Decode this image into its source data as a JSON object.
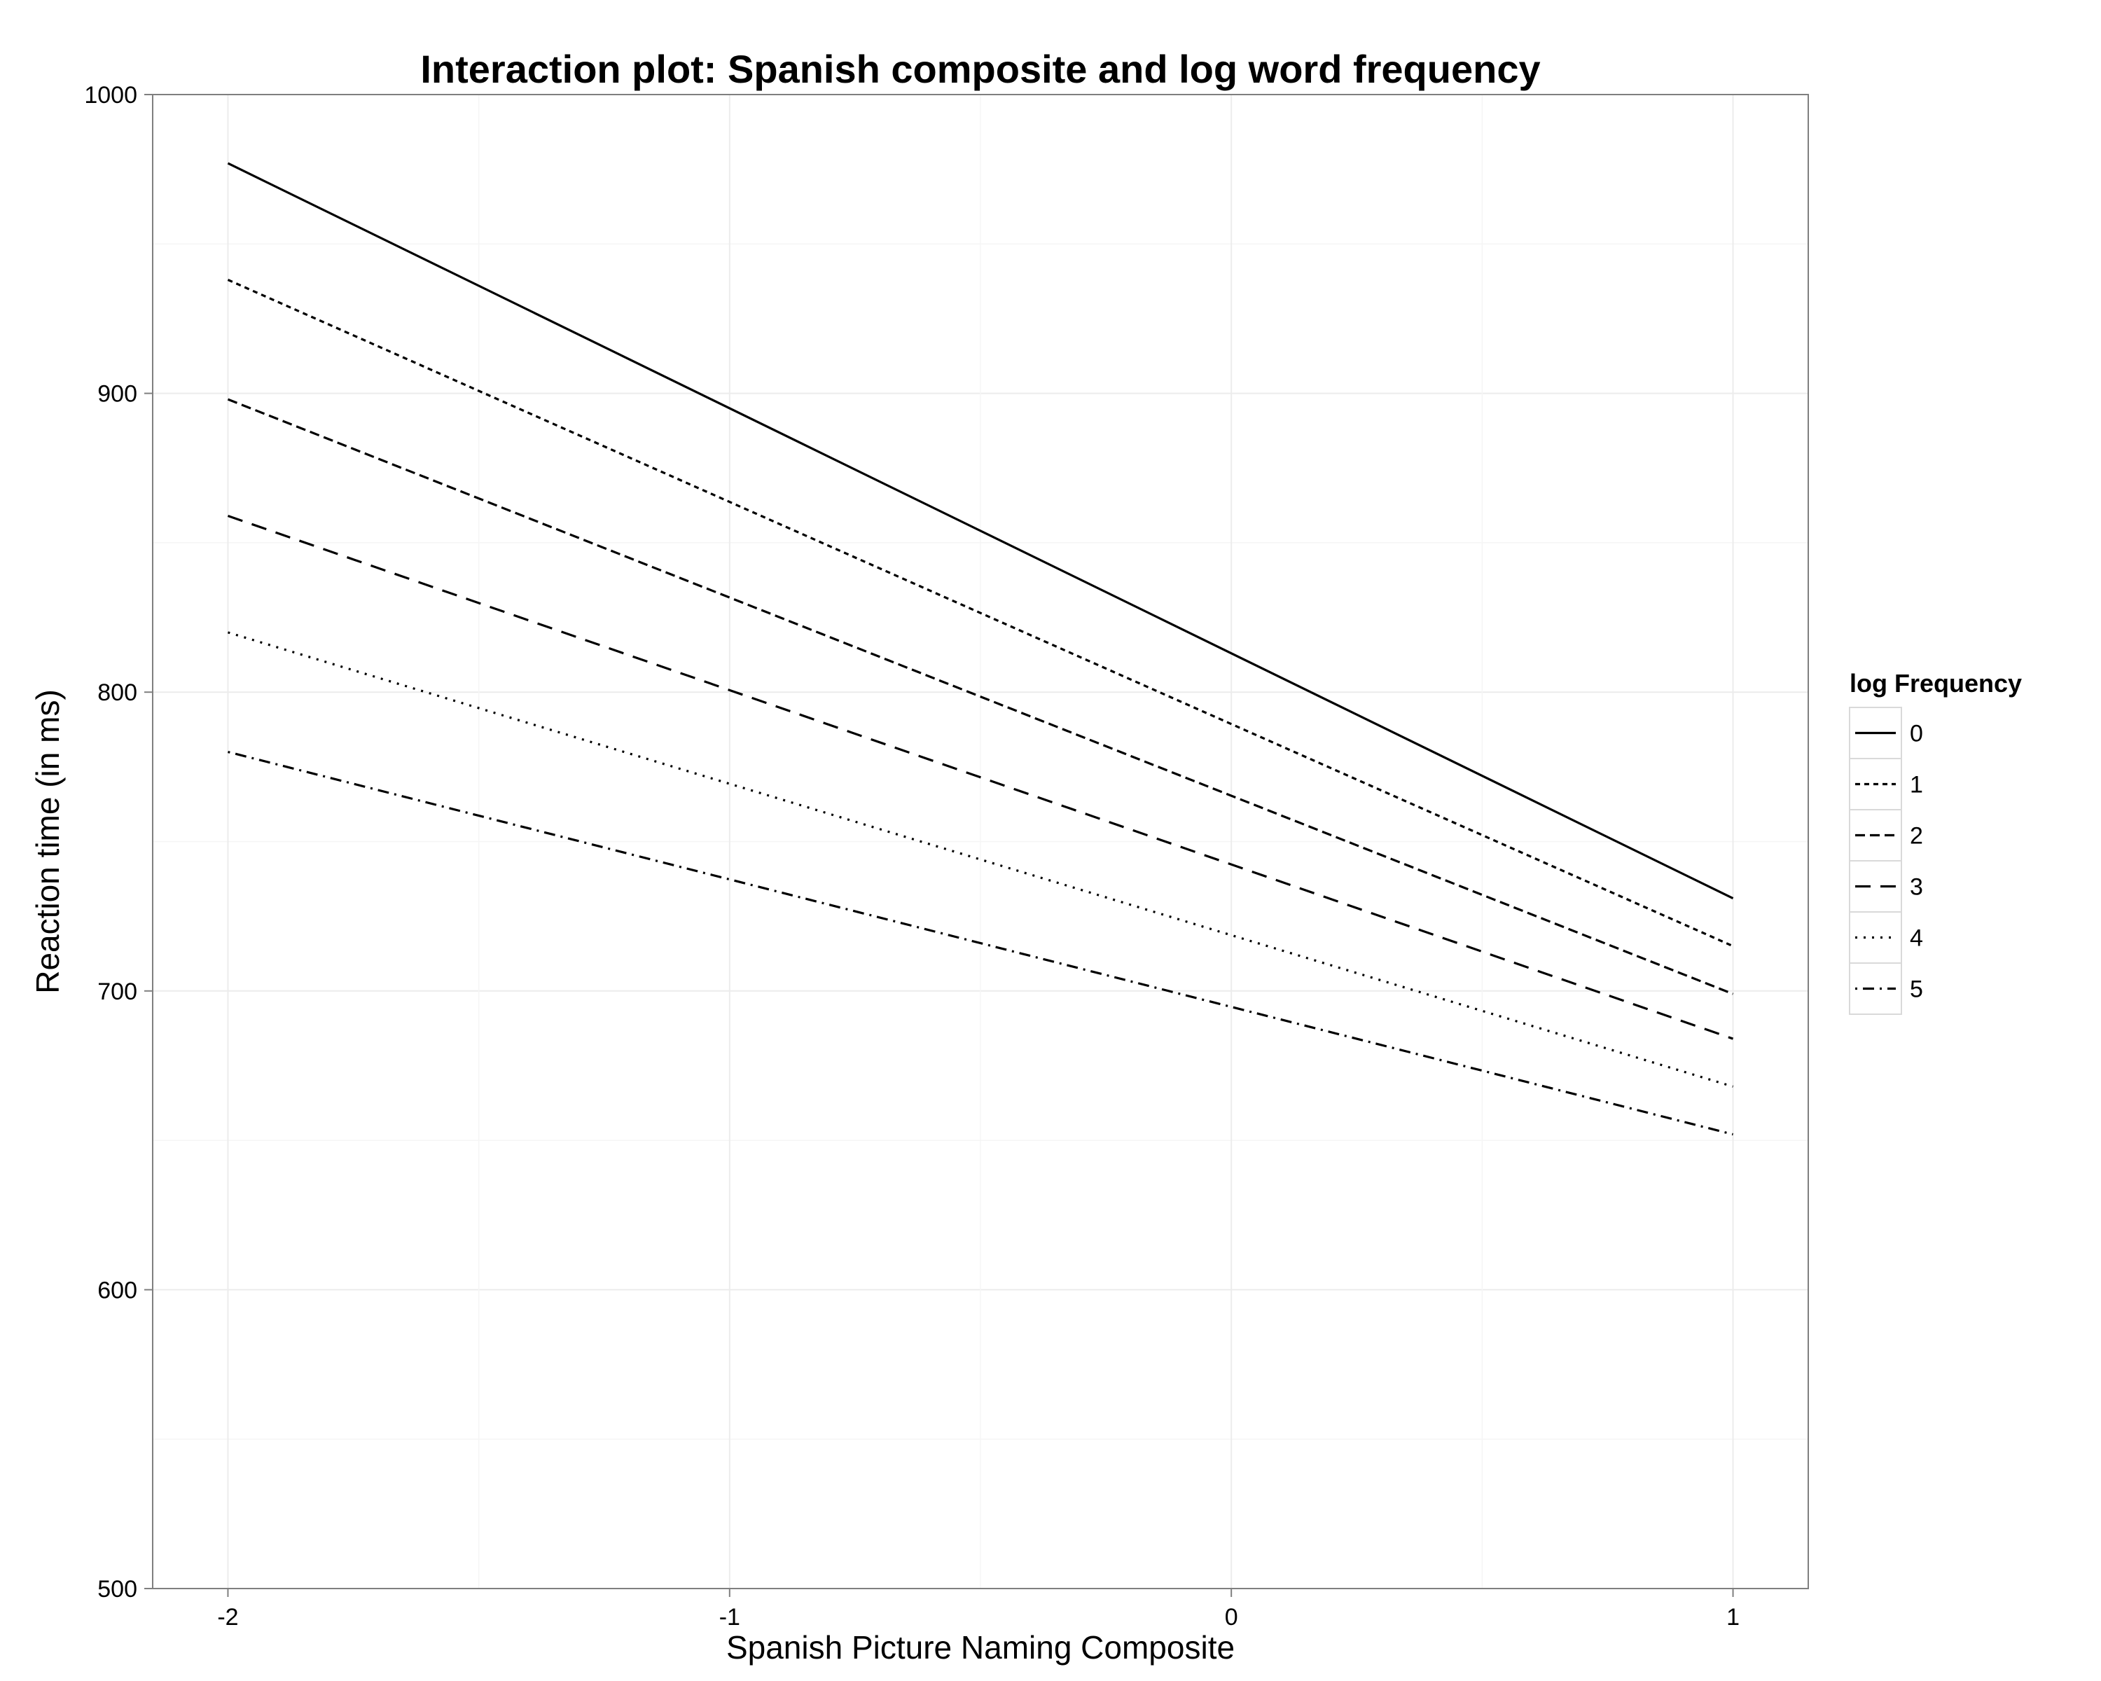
{
  "chart_data": {
    "type": "line",
    "title": "Interaction plot: Spanish composite and log word frequency",
    "xlabel": "Spanish Picture Naming Composite",
    "ylabel": "Reaction time (in ms)",
    "xlim": [
      -2.15,
      1.15
    ],
    "ylim": [
      500,
      1000
    ],
    "x_ticks": [
      -2,
      -1,
      0,
      1
    ],
    "x_tick_labels": [
      "-2",
      "-1",
      "0",
      "1"
    ],
    "y_ticks": [
      500,
      600,
      700,
      800,
      900,
      1000
    ],
    "y_tick_labels": [
      "500",
      "600",
      "700",
      "800",
      "900",
      "1000"
    ],
    "grid": true,
    "legend": {
      "title": "log Frequency",
      "placement": "right"
    },
    "x": [
      -2,
      1
    ],
    "series": [
      {
        "name": "0",
        "values": [
          977,
          731
        ],
        "dash": "solid"
      },
      {
        "name": "1",
        "values": [
          938,
          715
        ],
        "dash": "dotted-short"
      },
      {
        "name": "2",
        "values": [
          898,
          699
        ],
        "dash": "dashed-short"
      },
      {
        "name": "3",
        "values": [
          859,
          684
        ],
        "dash": "dashed-long"
      },
      {
        "name": "4",
        "values": [
          820,
          668
        ],
        "dash": "dotted"
      },
      {
        "name": "5",
        "values": [
          780,
          652
        ],
        "dash": "dotdash"
      }
    ]
  }
}
